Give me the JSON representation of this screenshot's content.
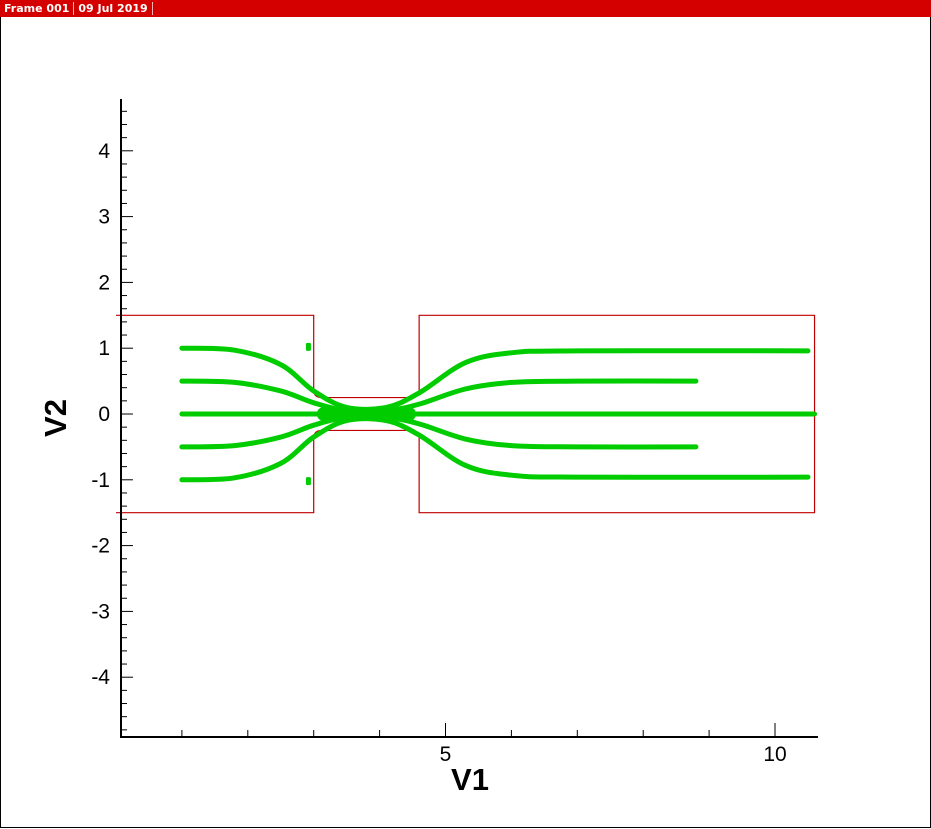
{
  "header": {
    "frame_label": "Frame 001",
    "date_label": "09 Jul 2019"
  },
  "colors": {
    "header_bg": "#d40000",
    "geometry": "#c00000",
    "streamlines": "#00cc00",
    "axis": "#000000"
  },
  "chart_data": {
    "type": "line",
    "xlabel": "V1",
    "ylabel": "V2",
    "xlim": [
      -1,
      10.6
    ],
    "ylim": [
      -4.8,
      4.8
    ],
    "x_major_ticks": [
      5,
      10
    ],
    "y_major_ticks": [
      -4,
      -3,
      -2,
      -1,
      0,
      1,
      2,
      3,
      4
    ],
    "y_tick_labels": [
      "-4",
      "-3",
      "-2",
      "-1",
      "0",
      "1",
      "2",
      "3",
      "4"
    ],
    "x_tick_labels": [
      "5",
      "10"
    ],
    "grid": false,
    "legend": "none",
    "geometry": {
      "left_chamber": {
        "x": [
          0,
          3
        ],
        "y": [
          -1.5,
          1.5
        ]
      },
      "channel": {
        "x": [
          3,
          4.6
        ],
        "y": [
          -0.25,
          0.25
        ]
      },
      "right_chamber": {
        "x": [
          4.6,
          10.6
        ],
        "y": [
          -1.5,
          1.5
        ]
      }
    },
    "series": [
      {
        "x": [
          1,
          1.8,
          2.5,
          3.0,
          3.5,
          4.1,
          4.6,
          5.3,
          6.0,
          7.0,
          10.5
        ],
        "y": [
          1.0,
          0.97,
          0.75,
          0.35,
          0.1,
          0.1,
          0.32,
          0.78,
          0.93,
          0.96,
          0.96
        ]
      },
      {
        "x": [
          1,
          1.8,
          2.5,
          3.0,
          3.5,
          4.1,
          4.6,
          5.3,
          6.0,
          7.0,
          8.8
        ],
        "y": [
          0.5,
          0.48,
          0.35,
          0.17,
          0.05,
          0.05,
          0.15,
          0.38,
          0.48,
          0.5,
          0.5
        ]
      },
      {
        "x": [
          1,
          10.6
        ],
        "y": [
          0,
          0
        ]
      },
      {
        "x": [
          1,
          1.8,
          2.5,
          3.0,
          3.5,
          4.1,
          4.6,
          5.3,
          6.0,
          7.0,
          8.8
        ],
        "y": [
          -0.5,
          -0.48,
          -0.35,
          -0.17,
          -0.05,
          -0.05,
          -0.15,
          -0.38,
          -0.48,
          -0.5,
          -0.5
        ]
      },
      {
        "x": [
          1,
          1.8,
          2.5,
          3.0,
          3.5,
          4.1,
          4.6,
          5.3,
          6.0,
          7.0,
          10.5
        ],
        "y": [
          -1.0,
          -0.97,
          -0.75,
          -0.35,
          -0.1,
          -0.1,
          -0.32,
          -0.78,
          -0.93,
          -0.96,
          -0.96
        ]
      }
    ],
    "points": [
      {
        "x": 2.92,
        "y": 1.02
      },
      {
        "x": 2.92,
        "y": -1.02
      }
    ]
  }
}
